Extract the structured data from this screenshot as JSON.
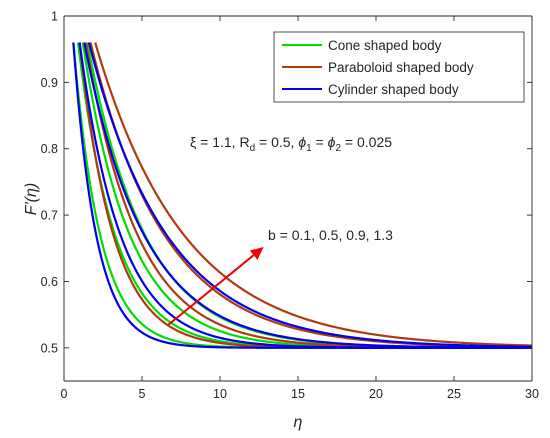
{
  "chart_data": {
    "type": "line",
    "xlabel": "η",
    "ylabel": "F'(η)",
    "xlim": [
      0,
      30
    ],
    "ylim": [
      0.45,
      1.0
    ],
    "x_ticks": [
      0,
      5,
      10,
      15,
      20,
      25,
      30
    ],
    "y_ticks": [
      0.5,
      0.6,
      0.7,
      0.8,
      0.9,
      1.0
    ],
    "x_tick_labels": [
      "0",
      "5",
      "10",
      "15",
      "20",
      "25",
      "30"
    ],
    "y_tick_labels": [
      "0.5",
      "0.6",
      "0.7",
      "0.8",
      "0.9",
      "1"
    ],
    "grid": false,
    "legend_position": "top-right",
    "legend": [
      {
        "label": "Cone shaped body",
        "color": "#00dd00"
      },
      {
        "label": "Paraboloid shaped body",
        "color": "#b03a10"
      },
      {
        "label": "Cylinder shaped body",
        "color": "#0000ee"
      }
    ],
    "parameters_annotation": {
      "xi": "ξ = 1.1, R",
      "rd_sub": "d",
      "rd_val": " = 0.5, ",
      "phi1": "ϕ",
      "phi1_sub": "1",
      "eq": " = ",
      "phi2": "ϕ",
      "phi2_sub": "2",
      "phi_val": " = 0.025"
    },
    "arrow_annotation": {
      "text": "b = 0.1, 0.5, 0.9, 1.3",
      "color": "#ee0000",
      "from": [
        6.7,
        0.535
      ],
      "to": [
        12.8,
        0.652
      ]
    },
    "series": [
      {
        "body": "cone",
        "b": 0.1,
        "color": "#00dd00",
        "x_start": 0.6,
        "y_start": 0.96,
        "y_end": 0.5,
        "decay": 0.58
      },
      {
        "body": "cone",
        "b": 0.5,
        "color": "#00dd00",
        "x_start": 0.9,
        "y_start": 0.96,
        "y_end": 0.5,
        "decay": 0.42
      },
      {
        "body": "cone",
        "b": 0.9,
        "color": "#00dd00",
        "x_start": 1.2,
        "y_start": 0.96,
        "y_end": 0.5,
        "decay": 0.33
      },
      {
        "body": "cone",
        "b": 1.3,
        "color": "#00dd00",
        "x_start": 1.5,
        "y_start": 0.96,
        "y_end": 0.5,
        "decay": 0.27
      },
      {
        "body": "paraboloid",
        "b": 0.1,
        "color": "#b03a10",
        "x_start": 1.0,
        "y_start": 0.96,
        "y_end": 0.5,
        "decay": 0.46
      },
      {
        "body": "paraboloid",
        "b": 0.5,
        "color": "#b03a10",
        "x_start": 1.4,
        "y_start": 0.96,
        "y_end": 0.5,
        "decay": 0.3
      },
      {
        "body": "paraboloid",
        "b": 0.9,
        "color": "#b03a10",
        "x_start": 1.7,
        "y_start": 0.96,
        "y_end": 0.5,
        "decay": 0.21
      },
      {
        "body": "paraboloid",
        "b": 1.3,
        "color": "#b03a10",
        "x_start": 2.0,
        "y_start": 0.96,
        "y_end": 0.5,
        "decay": 0.175
      },
      {
        "body": "cylinder",
        "b": 0.1,
        "color": "#0000ee",
        "x_start": 0.6,
        "y_start": 0.96,
        "y_end": 0.5,
        "decay": 0.68
      },
      {
        "body": "cylinder",
        "b": 0.5,
        "color": "#0000ee",
        "x_start": 1.0,
        "y_start": 0.96,
        "y_end": 0.5,
        "decay": 0.38
      },
      {
        "body": "cylinder",
        "b": 0.9,
        "color": "#0000ee",
        "x_start": 1.3,
        "y_start": 0.96,
        "y_end": 0.5,
        "decay": 0.26
      },
      {
        "body": "cylinder",
        "b": 1.3,
        "color": "#0000ee",
        "x_start": 1.6,
        "y_start": 0.96,
        "y_end": 0.5,
        "decay": 0.2
      }
    ]
  }
}
